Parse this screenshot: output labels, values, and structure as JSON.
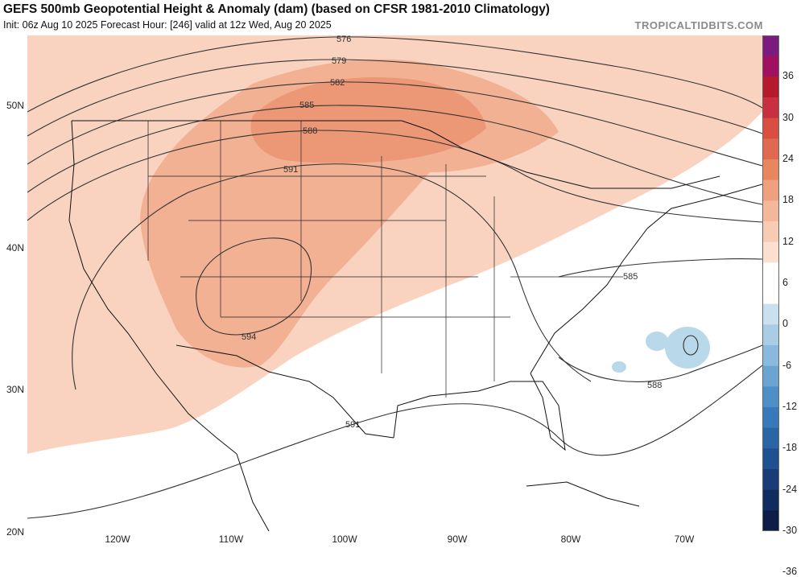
{
  "header": {
    "title": "GEFS 500mb Geopotential Height & Anomaly (dam) (based on CFSR 1981-2010 Climatology)",
    "subtitle": "Init: 06z Aug 10 2025   Forecast Hour: [246]   valid at 12z Wed, Aug 20 2025",
    "brand": "TROPICALTIDBITS.COM"
  },
  "axes": {
    "lat_labels": [
      "50N",
      "40N",
      "30N",
      "20N"
    ],
    "lon_labels": [
      "120W",
      "110W",
      "100W",
      "90W",
      "80W",
      "70W"
    ]
  },
  "contour_labels": [
    "576",
    "579",
    "582",
    "585",
    "588",
    "591",
    "594",
    "585",
    "588",
    "591"
  ],
  "colorbar": {
    "labels": [
      "36",
      "30",
      "24",
      "18",
      "12",
      "6",
      "0",
      "-6",
      "-12",
      "-18",
      "-24",
      "-30",
      "-36"
    ],
    "colors": [
      "#7b1a7f",
      "#a01060",
      "#b51a2c",
      "#c83040",
      "#d94e40",
      "#e06a50",
      "#e8875f",
      "#efa07c",
      "#f4b799",
      "#f8ccb3",
      "#fbdfcf",
      "#ffffff",
      "#ffffff",
      "#c9e0ee",
      "#a9cde5",
      "#89b9dc",
      "#6aa4d1",
      "#4d8fc6",
      "#387ab9",
      "#2a65a6",
      "#1f508f",
      "#173c78",
      "#112c5e",
      "#0b1d48"
    ]
  }
}
